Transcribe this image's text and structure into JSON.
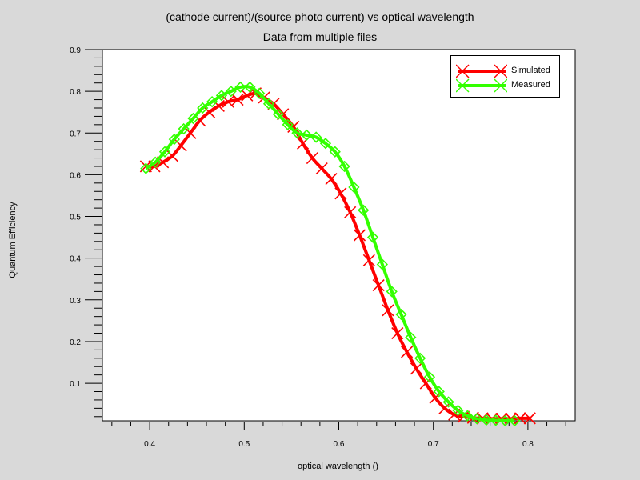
{
  "chart_data": {
    "type": "line",
    "title": "(cathode current)/(source photo current) vs optical wavelength",
    "subtitle": "Data from multiple files",
    "xlabel": "optical wavelength ()",
    "ylabel": "Quantum Efficiency",
    "xlim": [
      0.35,
      0.85
    ],
    "ylim": [
      0.01,
      0.9
    ],
    "xticks": [
      "0.4",
      "0.5",
      "0.6",
      "0.7",
      "0.8"
    ],
    "yticks": [
      "0.1",
      "0.2",
      "0.3",
      "0.4",
      "0.5",
      "0.6",
      "0.7",
      "0.8",
      "0.9"
    ],
    "legend_position": "top-right",
    "grid": false,
    "series": [
      {
        "name": "Simulated",
        "color": "#ff0000",
        "marker": "x",
        "x": [
          0.396,
          0.405,
          0.414,
          0.424,
          0.433,
          0.443,
          0.453,
          0.463,
          0.473,
          0.483,
          0.493,
          0.503,
          0.512,
          0.521,
          0.531,
          0.541,
          0.552,
          0.562,
          0.572,
          0.582,
          0.592,
          0.602,
          0.612,
          0.622,
          0.632,
          0.642,
          0.652,
          0.662,
          0.672,
          0.682,
          0.692,
          0.702,
          0.712,
          0.722,
          0.732,
          0.742,
          0.752,
          0.762,
          0.772,
          0.782,
          0.792,
          0.802
        ],
        "y": [
          0.62,
          0.62,
          0.63,
          0.645,
          0.67,
          0.7,
          0.73,
          0.75,
          0.765,
          0.775,
          0.78,
          0.79,
          0.795,
          0.785,
          0.77,
          0.745,
          0.715,
          0.675,
          0.64,
          0.615,
          0.59,
          0.555,
          0.51,
          0.455,
          0.395,
          0.335,
          0.275,
          0.22,
          0.175,
          0.135,
          0.1,
          0.065,
          0.04,
          0.025,
          0.02,
          0.017,
          0.016,
          0.015,
          0.015,
          0.015,
          0.016,
          0.016
        ]
      },
      {
        "name": "Measured",
        "color": "#33ff00",
        "marker": "diamond",
        "x": [
          0.396,
          0.406,
          0.416,
          0.426,
          0.436,
          0.446,
          0.456,
          0.466,
          0.476,
          0.486,
          0.496,
          0.506,
          0.516,
          0.526,
          0.536,
          0.546,
          0.556,
          0.566,
          0.576,
          0.586,
          0.596,
          0.606,
          0.616,
          0.626,
          0.636,
          0.646,
          0.656,
          0.666,
          0.676,
          0.686,
          0.696,
          0.706,
          0.716,
          0.726,
          0.736,
          0.746,
          0.756,
          0.766,
          0.776,
          0.786
        ],
        "y": [
          0.615,
          0.63,
          0.655,
          0.685,
          0.71,
          0.735,
          0.76,
          0.775,
          0.79,
          0.8,
          0.81,
          0.81,
          0.795,
          0.77,
          0.745,
          0.72,
          0.7,
          0.695,
          0.69,
          0.675,
          0.655,
          0.62,
          0.57,
          0.515,
          0.45,
          0.385,
          0.32,
          0.265,
          0.21,
          0.16,
          0.115,
          0.08,
          0.055,
          0.035,
          0.022,
          0.015,
          0.012,
          0.011,
          0.01,
          0.01
        ]
      }
    ]
  }
}
